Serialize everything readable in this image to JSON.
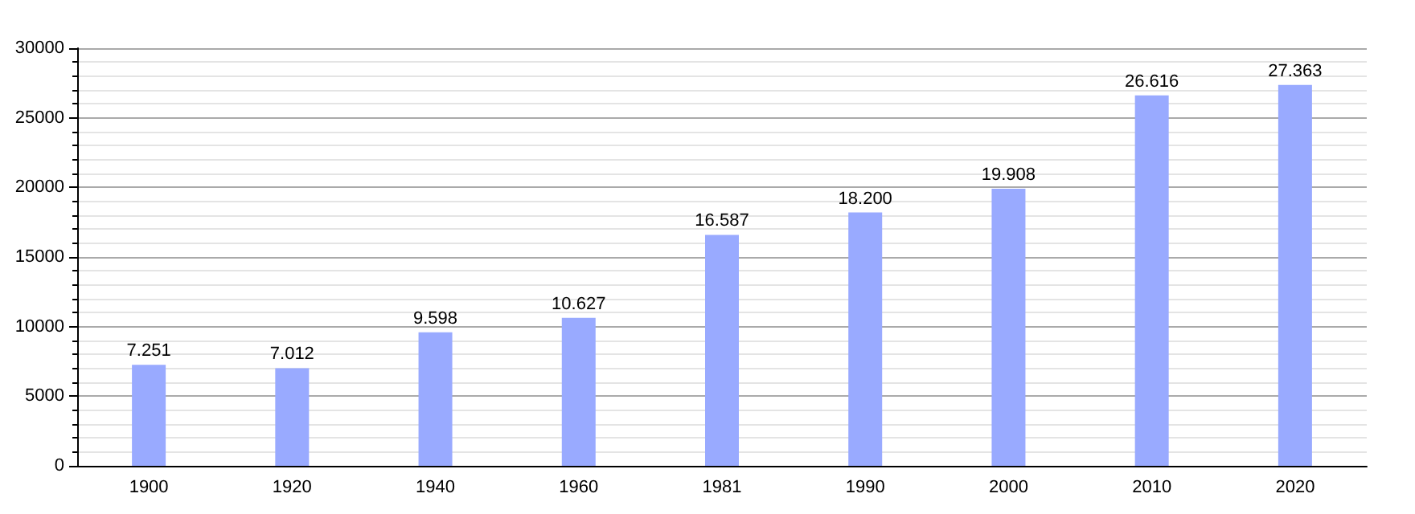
{
  "chart_data": {
    "type": "bar",
    "categories": [
      "1900",
      "1920",
      "1940",
      "1960",
      "1981",
      "1990",
      "2000",
      "2010",
      "2020"
    ],
    "values": [
      7251,
      7012,
      9598,
      10627,
      16587,
      18200,
      19908,
      26616,
      27363
    ],
    "value_labels": [
      "7.251",
      "7.012",
      "9.598",
      "10.627",
      "16.587",
      "18.200",
      "19.908",
      "26.616",
      "27.363"
    ],
    "color": "#99aaff",
    "ylim": [
      0,
      30000
    ],
    "yticks": [
      0,
      5000,
      10000,
      15000,
      20000,
      25000,
      30000
    ],
    "grid": "y"
  }
}
